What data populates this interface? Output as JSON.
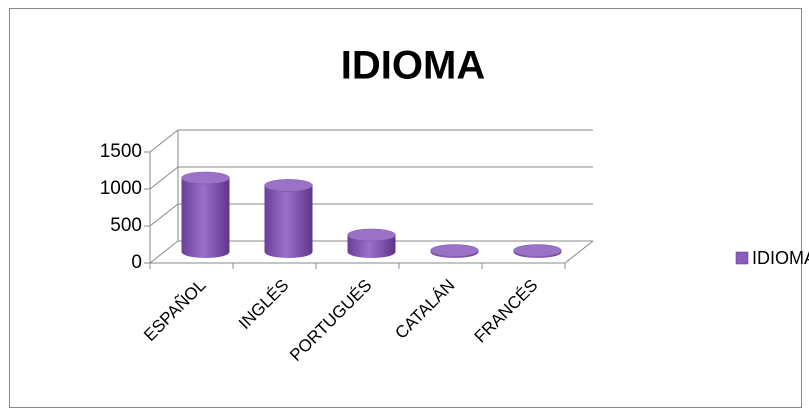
{
  "chart_data": {
    "type": "bar",
    "title": "IDIOMA",
    "categories": [
      "ESPAÑOL",
      "INGLÉS",
      "PORTUGUÉS",
      "CATALÁN",
      "FRANCÉS"
    ],
    "series": [
      {
        "name": "IDIOMA",
        "color": "#8a5cbc",
        "values": [
          1000,
          900,
          230,
          20,
          20
        ]
      }
    ],
    "ylim": [
      0,
      1500
    ],
    "yticks": [
      0,
      500,
      1000,
      1500
    ],
    "grid": true,
    "legend": "right"
  }
}
